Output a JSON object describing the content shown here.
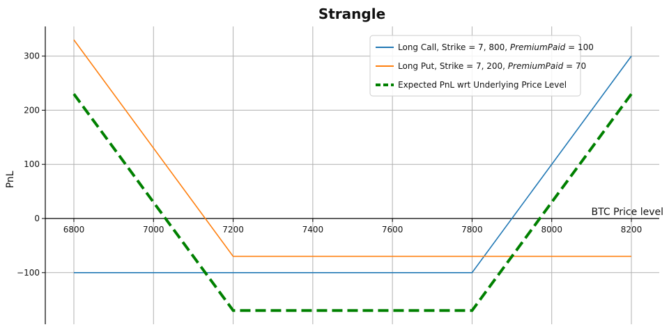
{
  "chart_data": {
    "type": "line",
    "title": "Strangle",
    "xlabel": "BTC Price level",
    "ylabel": "PnL",
    "x": [
      6800,
      7200,
      7800,
      8200
    ],
    "xlim": [
      6800,
      8200
    ],
    "ylim": [
      -200,
      350
    ],
    "xticks": [
      6800,
      7000,
      7200,
      7400,
      7600,
      7800,
      8000,
      8200
    ],
    "yticks": [
      -100,
      0,
      100,
      200,
      300
    ],
    "ytick_labels": [
      "−100",
      "0",
      "100",
      "200",
      "300"
    ],
    "grid": true,
    "legend_position": "top-right",
    "series": [
      {
        "name": "Long Call, Strike = 7, 800, PremiumPaid = 100",
        "label_prefix": "Long Call, Strike = 7, 800, ",
        "label_math": "PremiumPaid",
        "label_suffix": " = 100",
        "color": "#1f77b4",
        "style": "solid",
        "values": [
          -100,
          -100,
          -100,
          300
        ]
      },
      {
        "name": "Long Put, Strike = 7, 200, PremiumPaid = 70",
        "label_prefix": "Long Put, Strike = 7, 200, ",
        "label_math": "PremiumPaid",
        "label_suffix": " = 70",
        "color": "#ff7f0e",
        "style": "solid",
        "values": [
          330,
          -70,
          -70,
          -70
        ]
      },
      {
        "name": "Expected PnL wrt Underlying Price Level",
        "label_prefix": "Expected PnL wrt Underlying Price Level",
        "label_math": "",
        "label_suffix": "",
        "color": "#008000",
        "style": "dashed",
        "values": [
          230,
          -170,
          -170,
          230
        ]
      }
    ]
  }
}
